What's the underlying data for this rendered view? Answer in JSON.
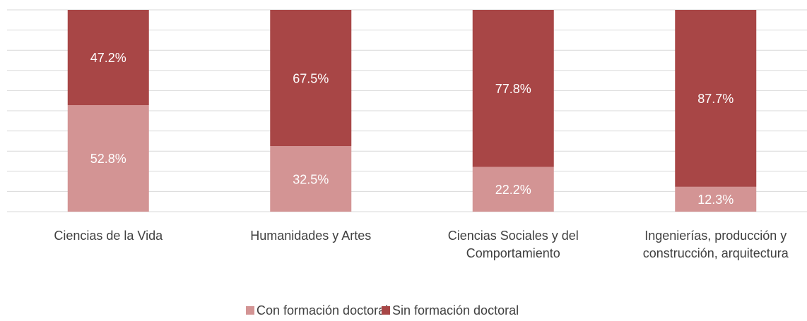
{
  "chart_data": {
    "type": "bar",
    "stacked": true,
    "categories": [
      "Ciencias de la Vida",
      "Humanidades y Artes",
      "Ciencias Sociales y del Comportamiento",
      "Ingenierías, producción y construcción, arquitectura"
    ],
    "series": [
      {
        "name": "Con formación doctoral",
        "color": "#d39494",
        "values": [
          52.8,
          32.5,
          22.2,
          12.3
        ],
        "value_labels": [
          "52.8%",
          "32.5%",
          "22.2%",
          "12.3%"
        ]
      },
      {
        "name": "Sin formación doctoral",
        "color": "#a84646",
        "values": [
          47.2,
          67.5,
          77.8,
          87.7
        ],
        "value_labels": [
          "47.2%",
          "67.5%",
          "77.8%",
          "87.7%"
        ]
      }
    ],
    "ylim": [
      0,
      100
    ],
    "yticks": [
      0,
      10,
      20,
      30,
      40,
      50,
      60,
      70,
      80,
      90,
      100
    ],
    "grid": true,
    "legend": "bottom"
  }
}
